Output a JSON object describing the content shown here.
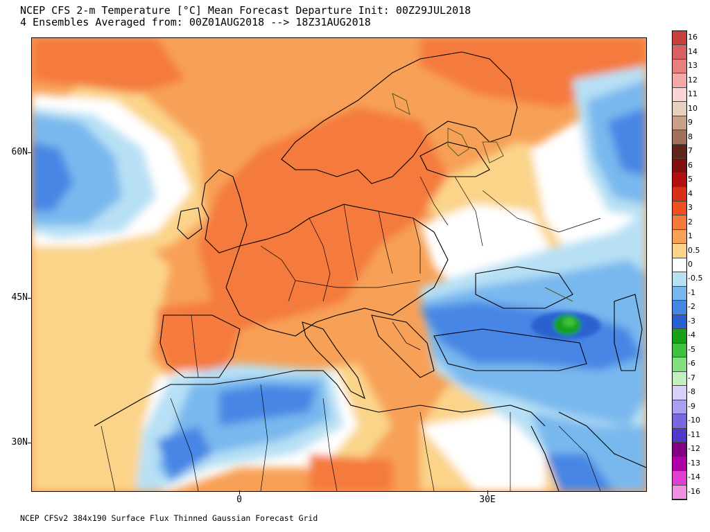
{
  "title_line1": "NCEP CFS 2-m Temperature [°C] Mean Forecast Departure Init: 00Z29JUL2018",
  "title_line2": "4 Ensembles Averaged from: 00Z01AUG2018 --> 18Z31AUG2018",
  "footer": "NCEP CFSv2 384x190 Surface Flux Thinned Gaussian Forecast Grid",
  "lat_labels": [
    "60N",
    "45N",
    "30N"
  ],
  "lon_labels": [
    "0",
    "30E"
  ],
  "colorbar": {
    "labels": [
      "16",
      "14",
      "13",
      "12",
      "11",
      "10",
      "9",
      "8",
      "7",
      "6",
      "5",
      "4",
      "3",
      "2",
      "1",
      "0.5",
      "0",
      "-0.5",
      "-1",
      "-2",
      "-3",
      "-4",
      "-5",
      "-6",
      "-7",
      "-8",
      "-9",
      "-10",
      "-11",
      "-12",
      "-13",
      "-14",
      "-16"
    ],
    "colors": [
      "#c8403c",
      "#d86060",
      "#e88080",
      "#f4a8a8",
      "#f8d4d4",
      "#e8d0c0",
      "#c8a088",
      "#a07058",
      "#602418",
      "#801010",
      "#b01010",
      "#d83018",
      "#f05020",
      "#f47a3c",
      "#f7a057",
      "#fbd48a",
      "#ffffff",
      "#b7e0f4",
      "#79b8ee",
      "#4686e4",
      "#2a60d0",
      "#18a018",
      "#40c040",
      "#80e080",
      "#c0f0c0",
      "#d8d0f8",
      "#a8a0f0",
      "#7868e0",
      "#5038c8",
      "#800080",
      "#b000a8",
      "#e040d0",
      "#f090e0"
    ]
  }
}
